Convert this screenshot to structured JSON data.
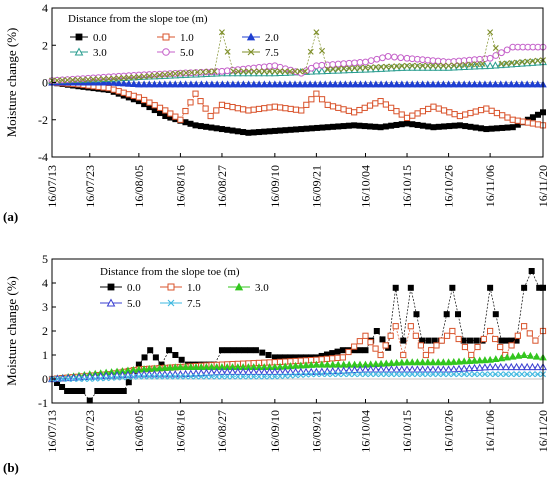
{
  "chart_data": [
    {
      "panel_label": "(a)",
      "type": "line",
      "ylabel": "Moisture change (%)",
      "xlabel": "",
      "ylim": [
        -4,
        4
      ],
      "yticks": [
        "-4",
        "-2",
        "0",
        "2",
        "4"
      ],
      "xlim": [
        "16/07/13",
        "16/11/20"
      ],
      "xticks": [
        "16/07/13",
        "16/07/23",
        "16/08/05",
        "16/08/16",
        "16/08/27",
        "16/09/10",
        "16/09/21",
        "16/10/04",
        "16/10/15",
        "16/10/26",
        "16/11/06",
        "16/11/20"
      ],
      "legend_title": "Distance from the slope toe (m)",
      "legend_placement": "top-left",
      "series": [
        {
          "name": "0.0",
          "color": "#000000",
          "marker": "square-filled",
          "points": [
            [
              "16/07/13",
              0
            ],
            [
              "16/07/20",
              -0.2
            ],
            [
              "16/07/28",
              -0.4
            ],
            [
              "16/08/05",
              -1.0
            ],
            [
              "16/08/12",
              -1.8
            ],
            [
              "16/08/20",
              -2.3
            ],
            [
              "16/08/27",
              -2.5
            ],
            [
              "16/09/03",
              -2.7
            ],
            [
              "16/09/10",
              -2.6
            ],
            [
              "16/09/17",
              -2.5
            ],
            [
              "16/09/24",
              -2.4
            ],
            [
              "16/10/01",
              -2.3
            ],
            [
              "16/10/08",
              -2.4
            ],
            [
              "16/10/15",
              -2.2
            ],
            [
              "16/10/22",
              -2.4
            ],
            [
              "16/10/29",
              -2.3
            ],
            [
              "16/11/05",
              -2.5
            ],
            [
              "16/11/12",
              -2.4
            ],
            [
              "16/11/20",
              -1.6
            ]
          ]
        },
        {
          "name": "1.0",
          "color": "#d9532b",
          "marker": "square-open",
          "points": [
            [
              "16/07/13",
              0
            ],
            [
              "16/07/20",
              -0.1
            ],
            [
              "16/07/28",
              -0.3
            ],
            [
              "16/08/05",
              -0.8
            ],
            [
              "16/08/12",
              -1.5
            ],
            [
              "16/08/16",
              -2.0
            ],
            [
              "16/08/20",
              -0.6
            ],
            [
              "16/08/24",
              -1.8
            ],
            [
              "16/08/27",
              -1.2
            ],
            [
              "16/09/03",
              -1.5
            ],
            [
              "16/09/10",
              -1.3
            ],
            [
              "16/09/17",
              -1.5
            ],
            [
              "16/09/21",
              -0.6
            ],
            [
              "16/09/24",
              -1.2
            ],
            [
              "16/10/01",
              -1.6
            ],
            [
              "16/10/08",
              -1.0
            ],
            [
              "16/10/15",
              -1.9
            ],
            [
              "16/10/22",
              -1.3
            ],
            [
              "16/10/29",
              -1.8
            ],
            [
              "16/11/05",
              -1.4
            ],
            [
              "16/11/12",
              -2.0
            ],
            [
              "16/11/20",
              -2.3
            ]
          ]
        },
        {
          "name": "2.0",
          "color": "#1f3fd1",
          "marker": "triangle-filled",
          "points": [
            [
              "16/07/13",
              0
            ],
            [
              "16/07/28",
              0.0
            ],
            [
              "16/08/05",
              -0.1
            ],
            [
              "16/08/16",
              -0.1
            ],
            [
              "16/09/10",
              -0.1
            ],
            [
              "16/10/04",
              -0.1
            ],
            [
              "16/10/26",
              -0.1
            ],
            [
              "16/11/06",
              -0.1
            ],
            [
              "16/11/20",
              -0.1
            ]
          ]
        },
        {
          "name": "3.0",
          "color": "#2a9d8f",
          "marker": "triangle-open",
          "points": [
            [
              "16/07/13",
              0.1
            ],
            [
              "16/07/28",
              0.2
            ],
            [
              "16/08/05",
              0.3
            ],
            [
              "16/08/16",
              0.4
            ],
            [
              "16/08/27",
              0.5
            ],
            [
              "16/09/10",
              0.5
            ],
            [
              "16/09/21",
              0.6
            ],
            [
              "16/10/04",
              0.7
            ],
            [
              "16/10/15",
              0.8
            ],
            [
              "16/10/26",
              0.8
            ],
            [
              "16/11/06",
              0.9
            ],
            [
              "16/11/20",
              1.1
            ]
          ]
        },
        {
          "name": "5.0",
          "color": "#c45fc9",
          "marker": "circle-open",
          "points": [
            [
              "16/07/13",
              0.1
            ],
            [
              "16/07/28",
              0.3
            ],
            [
              "16/08/05",
              0.4
            ],
            [
              "16/08/16",
              0.5
            ],
            [
              "16/08/27",
              0.6
            ],
            [
              "16/09/10",
              0.9
            ],
            [
              "16/09/17",
              0.5
            ],
            [
              "16/09/21",
              0.9
            ],
            [
              "16/10/04",
              1.1
            ],
            [
              "16/10/10",
              1.4
            ],
            [
              "16/10/15",
              1.3
            ],
            [
              "16/10/26",
              1.1
            ],
            [
              "16/11/06",
              1.3
            ],
            [
              "16/11/12",
              1.9
            ],
            [
              "16/11/20",
              1.9
            ]
          ]
        },
        {
          "name": "7.5",
          "color": "#7f8f2a",
          "marker": "x",
          "points": [
            [
              "16/07/13",
              0.1
            ],
            [
              "16/07/28",
              0.2
            ],
            [
              "16/08/05",
              0.3
            ],
            [
              "16/08/16",
              0.5
            ],
            [
              "16/08/25",
              0.6
            ],
            [
              "16/08/27",
              2.7
            ],
            [
              "16/08/30",
              0.6
            ],
            [
              "16/09/10",
              0.6
            ],
            [
              "16/09/18",
              0.6
            ],
            [
              "16/09/21",
              2.7
            ],
            [
              "16/09/24",
              0.7
            ],
            [
              "16/10/04",
              0.8
            ],
            [
              "16/10/15",
              0.9
            ],
            [
              "16/10/26",
              0.9
            ],
            [
              "16/11/04",
              1.0
            ],
            [
              "16/11/06",
              2.7
            ],
            [
              "16/11/09",
              1.0
            ],
            [
              "16/11/20",
              1.2
            ]
          ]
        }
      ]
    },
    {
      "panel_label": "(b)",
      "type": "line",
      "ylabel": "Moisture change (%)",
      "xlabel": "",
      "ylim": [
        -1,
        5
      ],
      "yticks": [
        "-1",
        "0",
        "1",
        "2",
        "3",
        "4",
        "5"
      ],
      "xlim": [
        "16/07/13",
        "16/11/20"
      ],
      "xticks": [
        "16/07/13",
        "16/07/23",
        "16/08/05",
        "16/08/16",
        "16/08/27",
        "16/09/10",
        "16/09/21",
        "16/10/04",
        "16/10/15",
        "16/10/26",
        "16/11/06",
        "16/11/20"
      ],
      "legend_title": "Distance from the slope toe (m)",
      "legend_placement": "top-left",
      "series": [
        {
          "name": "0.0",
          "color": "#000000",
          "marker": "square-filled",
          "points": [
            [
              "16/07/13",
              0
            ],
            [
              "16/07/17",
              -0.5
            ],
            [
              "16/07/21",
              -0.5
            ],
            [
              "16/07/23",
              -0.9
            ],
            [
              "16/07/25",
              -0.5
            ],
            [
              "16/08/01",
              -0.5
            ],
            [
              "16/08/05",
              0.6
            ],
            [
              "16/08/08",
              1.2
            ],
            [
              "16/08/11",
              0.6
            ],
            [
              "16/08/13",
              1.2
            ],
            [
              "16/08/18",
              0.6
            ],
            [
              "16/08/25",
              0.6
            ],
            [
              "16/08/27",
              1.2
            ],
            [
              "16/09/05",
              1.2
            ],
            [
              "16/09/10",
              0.9
            ],
            [
              "16/09/21",
              0.9
            ],
            [
              "16/09/28",
              1.2
            ],
            [
              "16/10/04",
              1.2
            ],
            [
              "16/10/07",
              2.0
            ],
            [
              "16/10/10",
              1.3
            ],
            [
              "16/10/12",
              3.8
            ],
            [
              "16/10/14",
              1.6
            ],
            [
              "16/10/16",
              3.8
            ],
            [
              "16/10/19",
              1.6
            ],
            [
              "16/10/24",
              1.6
            ],
            [
              "16/10/27",
              3.8
            ],
            [
              "16/10/30",
              1.6
            ],
            [
              "16/11/04",
              1.6
            ],
            [
              "16/11/06",
              3.8
            ],
            [
              "16/11/09",
              1.6
            ],
            [
              "16/11/13",
              1.6
            ],
            [
              "16/11/15",
              3.8
            ],
            [
              "16/11/17",
              4.5
            ],
            [
              "16/11/19",
              3.8
            ],
            [
              "16/11/20",
              3.8
            ]
          ]
        },
        {
          "name": "1.0",
          "color": "#d9532b",
          "marker": "square-open",
          "points": [
            [
              "16/07/13",
              0
            ],
            [
              "16/07/28",
              0.2
            ],
            [
              "16/08/05",
              0.4
            ],
            [
              "16/08/16",
              0.5
            ],
            [
              "16/08/27",
              0.6
            ],
            [
              "16/09/10",
              0.7
            ],
            [
              "16/09/21",
              0.8
            ],
            [
              "16/09/28",
              0.9
            ],
            [
              "16/10/04",
              1.8
            ],
            [
              "16/10/08",
              1.0
            ],
            [
              "16/10/12",
              2.2
            ],
            [
              "16/10/14",
              1.0
            ],
            [
              "16/10/16",
              2.2
            ],
            [
              "16/10/20",
              1.0
            ],
            [
              "16/10/27",
              2.0
            ],
            [
              "16/11/01",
              1.0
            ],
            [
              "16/11/06",
              2.0
            ],
            [
              "16/11/10",
              1.0
            ],
            [
              "16/11/15",
              2.2
            ],
            [
              "16/11/18",
              1.6
            ],
            [
              "16/11/20",
              2.0
            ]
          ]
        },
        {
          "name": "3.0",
          "color": "#33c61e",
          "marker": "triangle-filled",
          "points": [
            [
              "16/07/13",
              0
            ],
            [
              "16/07/23",
              0.2
            ],
            [
              "16/08/05",
              0.4
            ],
            [
              "16/08/16",
              0.5
            ],
            [
              "16/08/27",
              0.5
            ],
            [
              "16/09/10",
              0.5
            ],
            [
              "16/09/21",
              0.6
            ],
            [
              "16/10/04",
              0.6
            ],
            [
              "16/10/15",
              0.7
            ],
            [
              "16/10/26",
              0.7
            ],
            [
              "16/11/06",
              0.8
            ],
            [
              "16/11/15",
              1.0
            ],
            [
              "16/11/20",
              0.9
            ]
          ]
        },
        {
          "name": "5.0",
          "color": "#3a3fd1",
          "marker": "triangle-open",
          "points": [
            [
              "16/07/13",
              0
            ],
            [
              "16/07/23",
              0.1
            ],
            [
              "16/08/05",
              0.2
            ],
            [
              "16/08/16",
              0.2
            ],
            [
              "16/08/27",
              0.3
            ],
            [
              "16/09/10",
              0.3
            ],
            [
              "16/09/21",
              0.3
            ],
            [
              "16/10/04",
              0.4
            ],
            [
              "16/10/15",
              0.4
            ],
            [
              "16/10/26",
              0.4
            ],
            [
              "16/11/06",
              0.5
            ],
            [
              "16/11/20",
              0.5
            ]
          ]
        },
        {
          "name": "7.5",
          "color": "#3fb8e0",
          "marker": "x",
          "points": [
            [
              "16/07/13",
              0
            ],
            [
              "16/07/23",
              0.0
            ],
            [
              "16/08/05",
              0.1
            ],
            [
              "16/08/16",
              0.1
            ],
            [
              "16/08/27",
              0.1
            ],
            [
              "16/09/10",
              0.1
            ],
            [
              "16/09/21",
              0.2
            ],
            [
              "16/10/04",
              0.2
            ],
            [
              "16/10/15",
              0.2
            ],
            [
              "16/10/26",
              0.2
            ],
            [
              "16/11/06",
              0.2
            ],
            [
              "16/11/20",
              0.2
            ]
          ]
        }
      ]
    }
  ]
}
